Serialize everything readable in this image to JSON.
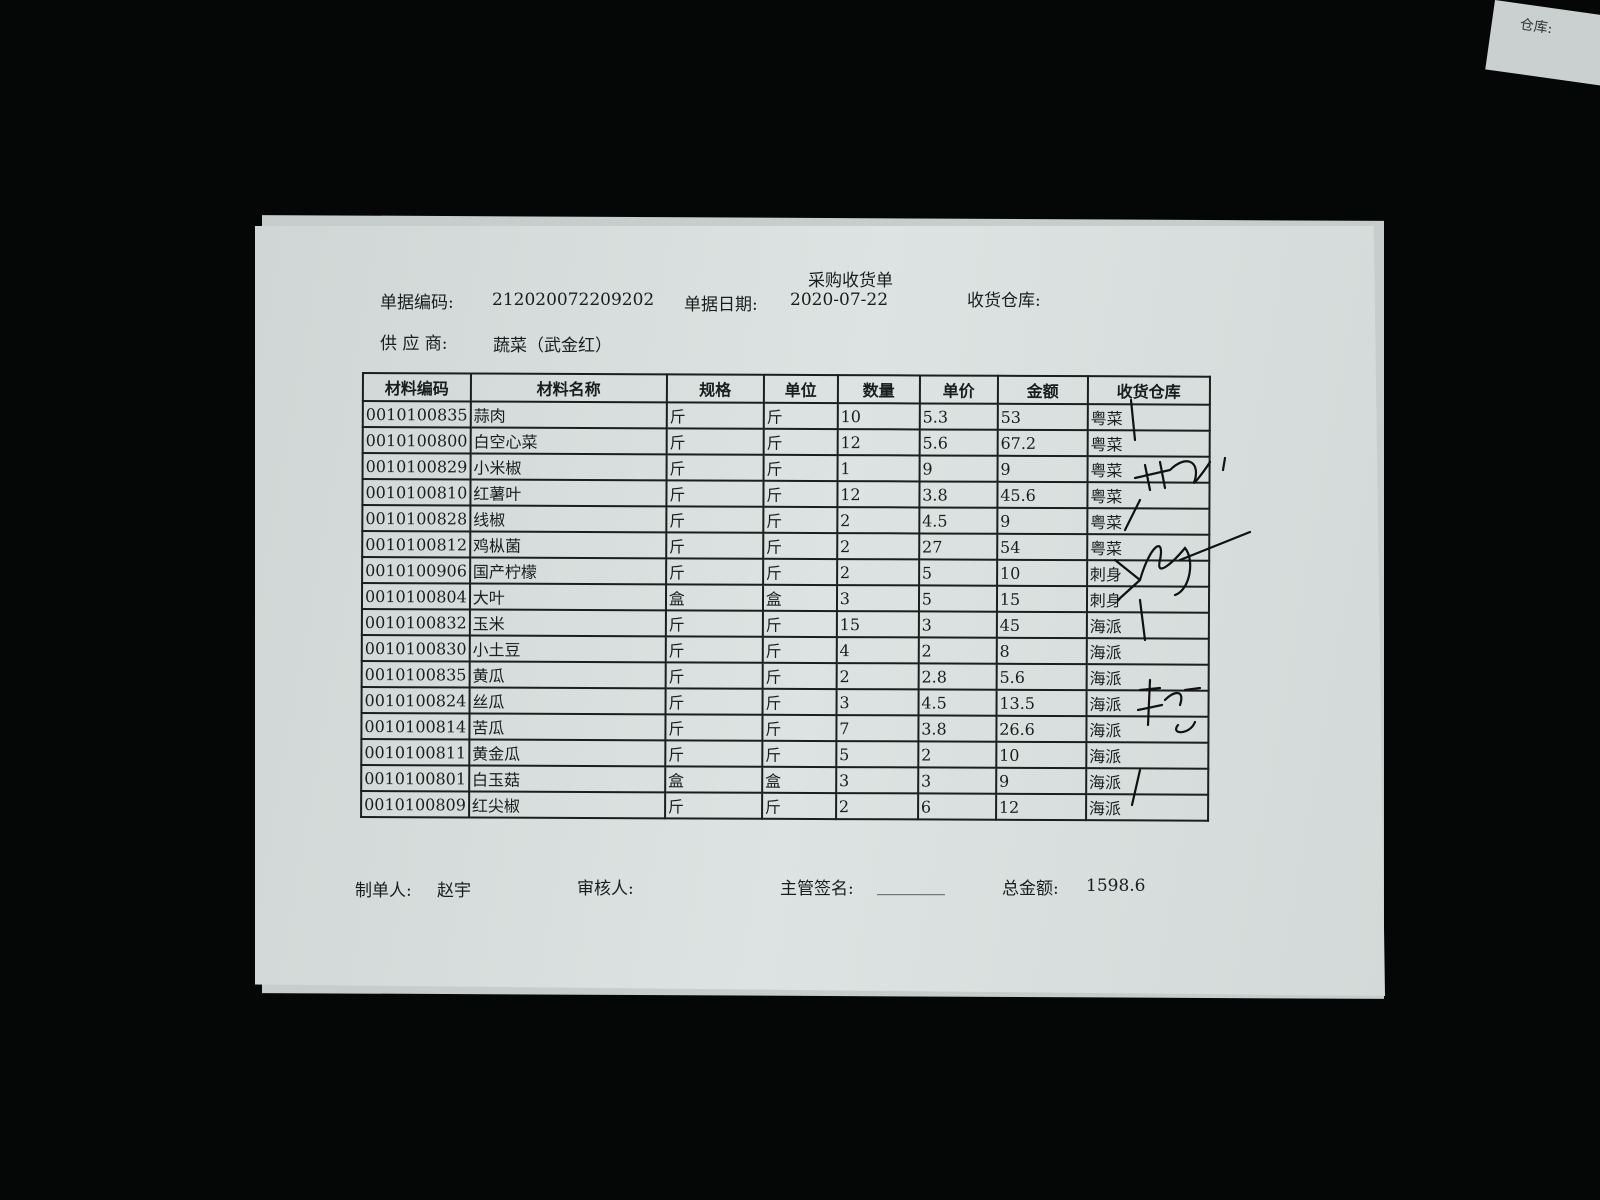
{
  "background_paper": {
    "label": "仓库:"
  },
  "document": {
    "title": "采购收货单",
    "doc_no_label": "单据编码:",
    "doc_no": "212020072209202",
    "date_label": "单据日期:",
    "date": "2020-07-22",
    "warehouse_label": "收货仓库:",
    "supplier_label": "供 应 商:",
    "supplier": "蔬菜（武金红）"
  },
  "table": {
    "headers": [
      "材料编码",
      "材料名称",
      "规格",
      "单位",
      "数量",
      "单价",
      "金额",
      "收货仓库"
    ],
    "rows": [
      [
        "0010100835",
        "蒜肉",
        "斤",
        "斤",
        "10",
        "5.3",
        "53",
        "粤菜"
      ],
      [
        "0010100800",
        "白空心菜",
        "斤",
        "斤",
        "12",
        "5.6",
        "67.2",
        "粤菜"
      ],
      [
        "0010100829",
        "小米椒",
        "斤",
        "斤",
        "1",
        "9",
        "9",
        "粤菜"
      ],
      [
        "0010100810",
        "红薯叶",
        "斤",
        "斤",
        "12",
        "3.8",
        "45.6",
        "粤菜"
      ],
      [
        "0010100828",
        "线椒",
        "斤",
        "斤",
        "2",
        "4.5",
        "9",
        "粤菜"
      ],
      [
        "0010100812",
        "鸡枞菌",
        "斤",
        "斤",
        "2",
        "27",
        "54",
        "粤菜"
      ],
      [
        "0010100906",
        "国产柠檬",
        "斤",
        "斤",
        "2",
        "5",
        "10",
        "刺身"
      ],
      [
        "0010100804",
        "大叶",
        "盒",
        "盒",
        "3",
        "5",
        "15",
        "刺身"
      ],
      [
        "0010100832",
        "玉米",
        "斤",
        "斤",
        "15",
        "3",
        "45",
        "海派"
      ],
      [
        "0010100830",
        "小土豆",
        "斤",
        "斤",
        "4",
        "2",
        "8",
        "海派"
      ],
      [
        "0010100835",
        "黄瓜",
        "斤",
        "斤",
        "2",
        "2.8",
        "5.6",
        "海派"
      ],
      [
        "0010100824",
        "丝瓜",
        "斤",
        "斤",
        "3",
        "4.5",
        "13.5",
        "海派"
      ],
      [
        "0010100814",
        "苦瓜",
        "斤",
        "斤",
        "7",
        "3.8",
        "26.6",
        "海派"
      ],
      [
        "0010100811",
        "黄金瓜",
        "斤",
        "斤",
        "5",
        "2",
        "10",
        "海派"
      ],
      [
        "0010100801",
        "白玉菇",
        "盒",
        "盒",
        "3",
        "3",
        "9",
        "海派"
      ],
      [
        "0010100809",
        "红尖椒",
        "斤",
        "斤",
        "2",
        "6",
        "12",
        "海派"
      ]
    ]
  },
  "footer": {
    "maker_label": "制单人:",
    "maker": "赵宇",
    "reviewer_label": "审核人:",
    "supervisor_label": "主管签名:",
    "supervisor_blank": "________",
    "total_label": "总金额:",
    "total": "1598.6"
  }
}
